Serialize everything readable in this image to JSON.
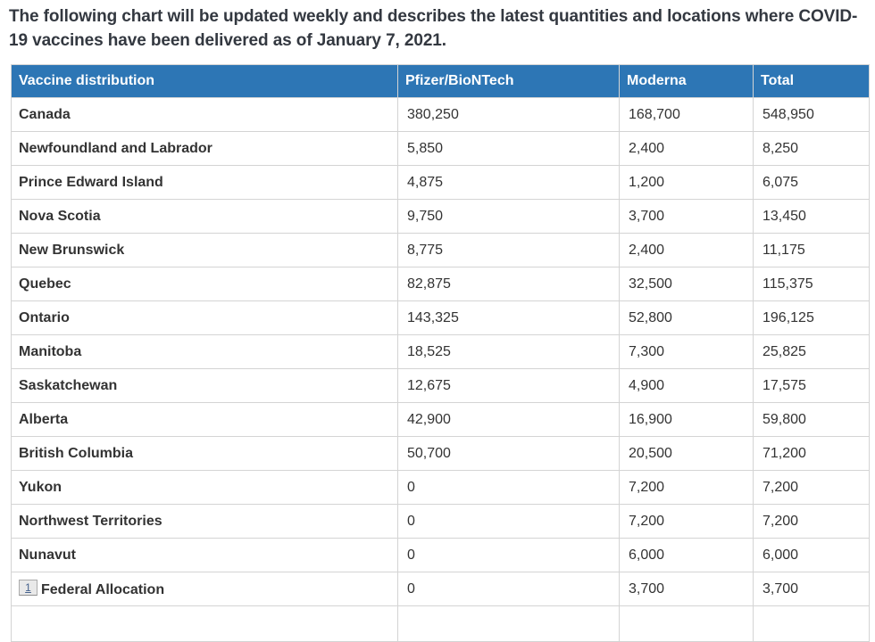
{
  "intro": {
    "text": "The following chart will be updated weekly and describes the latest quantities and locations where COVID-19 vaccines have been delivered as of January 7, 2021."
  },
  "colors": {
    "header_bg": "#2d76b5",
    "header_text": "#ffffff",
    "body_text": "#333333",
    "border": "#d4d4d4",
    "intro_text": "#333840",
    "footnote_text": "#44618c",
    "footnote_bg": "#e9e9e9",
    "footnote_border": "#ababab"
  },
  "chart_data": {
    "type": "table",
    "title": "Vaccine distribution",
    "columns": [
      "Vaccine distribution",
      "Pfizer/BioNTech",
      "Moderna",
      "Total"
    ],
    "rows": [
      {
        "name": "Canada",
        "pfizer": "380,250",
        "moderna": "168,700",
        "total": "548,950"
      },
      {
        "name": "Newfoundland and Labrador",
        "pfizer": "5,850",
        "moderna": "2,400",
        "total": "8,250"
      },
      {
        "name": "Prince Edward Island",
        "pfizer": "4,875",
        "moderna": "1,200",
        "total": "6,075"
      },
      {
        "name": "Nova Scotia",
        "pfizer": "9,750",
        "moderna": "3,700",
        "total": "13,450"
      },
      {
        "name": "New Brunswick",
        "pfizer": "8,775",
        "moderna": "2,400",
        "total": "11,175"
      },
      {
        "name": "Quebec",
        "pfizer": "82,875",
        "moderna": "32,500",
        "total": "115,375"
      },
      {
        "name": "Ontario",
        "pfizer": "143,325",
        "moderna": "52,800",
        "total": "196,125"
      },
      {
        "name": "Manitoba",
        "pfizer": "18,525",
        "moderna": "7,300",
        "total": "25,825"
      },
      {
        "name": "Saskatchewan",
        "pfizer": "12,675",
        "moderna": "4,900",
        "total": "17,575"
      },
      {
        "name": "Alberta",
        "pfizer": "42,900",
        "moderna": "16,900",
        "total": "59,800"
      },
      {
        "name": "British Columbia",
        "pfizer": "50,700",
        "moderna": "20,500",
        "total": "71,200"
      },
      {
        "name": "Yukon",
        "pfizer": "0",
        "moderna": "7,200",
        "total": "7,200"
      },
      {
        "name": "Northwest Territories",
        "pfizer": "0",
        "moderna": "7,200",
        "total": "7,200"
      },
      {
        "name": "Nunavut",
        "pfizer": "0",
        "moderna": "6,000",
        "total": "6,000"
      },
      {
        "name": "Federal Allocation",
        "footnote": "1",
        "pfizer": "0",
        "moderna": "3,700",
        "total": "3,700"
      }
    ]
  }
}
